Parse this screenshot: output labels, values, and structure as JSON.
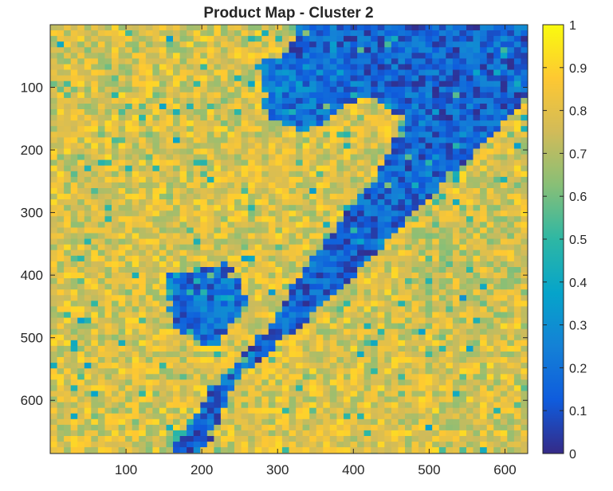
{
  "chart_data": {
    "type": "heatmap",
    "title": "Product Map - Cluster 2",
    "xlabel": "",
    "ylabel": "",
    "x_ticks": [
      100,
      200,
      300,
      400,
      500,
      600
    ],
    "y_ticks": [
      100,
      200,
      300,
      400,
      500,
      600
    ],
    "xlim": [
      0,
      630
    ],
    "ylim": [
      0,
      685
    ],
    "y_direction": "reverse",
    "colorbar": {
      "colormap": "parula",
      "range": [
        0,
        1
      ],
      "ticks": [
        "0",
        "0.1",
        "0.2",
        "0.3",
        "0.4",
        "0.5",
        "0.6",
        "0.7",
        "0.8",
        "0.9",
        "1"
      ],
      "placement": "right"
    },
    "colors": [
      "#352a87",
      "#0f5cdd",
      "#1481d6",
      "#06a4ca",
      "#2eb7a4",
      "#87bf77",
      "#d1bb59",
      "#fec832",
      "#f9fb0e"
    ],
    "regions": {
      "high": {
        "value": 0.78,
        "description_points": [
          [
            60,
            100
          ],
          [
            150,
            350
          ],
          [
            80,
            600
          ]
        ]
      },
      "diagonal_low_band": {
        "value": 0.15,
        "path": [
          [
            330,
            0
          ],
          [
            630,
            0
          ],
          [
            630,
            120
          ],
          [
            520,
            250
          ],
          [
            420,
            380
          ],
          [
            330,
            480
          ],
          [
            250,
            560
          ],
          [
            200,
            685
          ],
          [
            160,
            685
          ],
          [
            200,
            600
          ],
          [
            290,
            480
          ],
          [
            340,
            380
          ],
          [
            420,
            260
          ],
          [
            470,
            150
          ],
          [
            400,
            100
          ],
          [
            300,
            60
          ]
        ]
      },
      "upper_mid_low": {
        "value": 0.2,
        "path": [
          [
            270,
            60
          ],
          [
            380,
            40
          ],
          [
            420,
            110
          ],
          [
            340,
            170
          ],
          [
            290,
            150
          ]
        ]
      },
      "left_island_low": {
        "value": 0.18,
        "path": [
          [
            150,
            400
          ],
          [
            230,
            380
          ],
          [
            260,
            440
          ],
          [
            220,
            520
          ],
          [
            160,
            480
          ]
        ]
      },
      "lower_right_high": {
        "value": 0.75,
        "path": [
          [
            470,
            320
          ],
          [
            600,
            270
          ],
          [
            630,
            420
          ],
          [
            560,
            520
          ],
          [
            450,
            480
          ]
        ]
      }
    }
  }
}
